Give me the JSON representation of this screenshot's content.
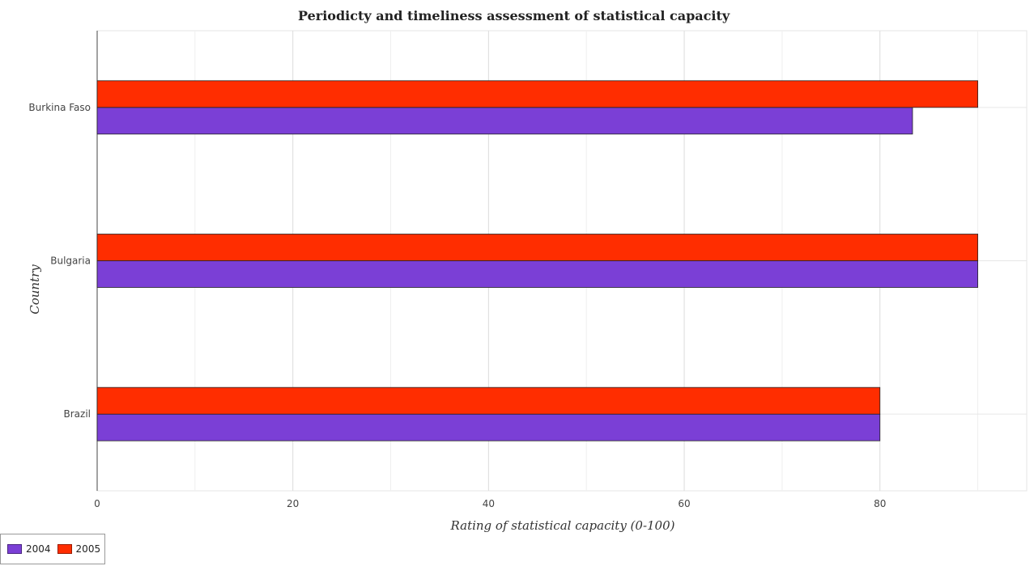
{
  "chart_data": {
    "type": "bar",
    "orientation": "horizontal",
    "title": "Periodicty and timeliness assessment of statistical capacity",
    "xlabel": "Rating of statistical capacity (0-100)",
    "ylabel": "Country",
    "categories": [
      "Brazil",
      "Bulgaria",
      "Burkina Faso"
    ],
    "series": [
      {
        "name": "2004",
        "color": "#7b3fd6",
        "values": [
          80,
          90,
          83.33
        ]
      },
      {
        "name": "2005",
        "color": "#ff2d00",
        "values": [
          80,
          90,
          90
        ]
      }
    ],
    "xlim": [
      0,
      95
    ],
    "xticks": [
      0,
      20,
      40,
      60,
      80
    ],
    "grid": true,
    "legend_position": "bottom-left"
  }
}
